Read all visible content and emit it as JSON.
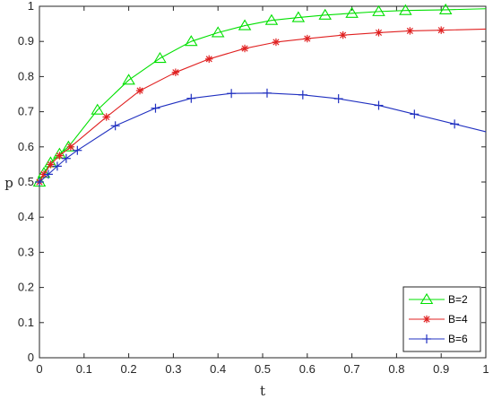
{
  "chart_data": {
    "type": "line",
    "xlabel": "t",
    "ylabel": "p",
    "xlim": [
      0,
      1
    ],
    "ylim": [
      0,
      1
    ],
    "x_ticks": [
      "0",
      "0.1",
      "0.2",
      "0.3",
      "0.4",
      "0.5",
      "0.6",
      "0.7",
      "0.8",
      "0.9",
      "1"
    ],
    "y_ticks": [
      "0",
      "0.1",
      "0.2",
      "0.3",
      "0.4",
      "0.5",
      "0.6",
      "0.7",
      "0.8",
      "0.9",
      "1"
    ],
    "grid": false,
    "legend_position": "bottom-right",
    "series": [
      {
        "name": "B=2",
        "color": "#00e000",
        "marker": "triangle",
        "x": [
          0,
          0.01,
          0.025,
          0.045,
          0.065,
          0.13,
          0.2,
          0.27,
          0.34,
          0.4,
          0.46,
          0.52,
          0.58,
          0.64,
          0.7,
          0.76,
          0.82,
          0.91,
          1.0
        ],
        "y": [
          0.5,
          0.525,
          0.555,
          0.58,
          0.6,
          0.705,
          0.79,
          0.852,
          0.9,
          0.925,
          0.945,
          0.96,
          0.968,
          0.975,
          0.98,
          0.985,
          0.988,
          0.99,
          0.993
        ],
        "marker_x": [
          0,
          0.01,
          0.025,
          0.045,
          0.065,
          0.13,
          0.2,
          0.27,
          0.34,
          0.4,
          0.46,
          0.52,
          0.58,
          0.64,
          0.7,
          0.76,
          0.82,
          0.91
        ]
      },
      {
        "name": "B=4",
        "color": "#e02020",
        "marker": "star",
        "x": [
          0,
          0.01,
          0.025,
          0.045,
          0.07,
          0.15,
          0.225,
          0.305,
          0.38,
          0.46,
          0.53,
          0.6,
          0.68,
          0.76,
          0.83,
          0.9,
          1.0
        ],
        "y": [
          0.5,
          0.522,
          0.55,
          0.575,
          0.6,
          0.685,
          0.76,
          0.812,
          0.85,
          0.88,
          0.898,
          0.908,
          0.918,
          0.925,
          0.93,
          0.932,
          0.935
        ],
        "marker_x": [
          0,
          0.01,
          0.025,
          0.045,
          0.07,
          0.15,
          0.225,
          0.305,
          0.38,
          0.46,
          0.53,
          0.6,
          0.68,
          0.76,
          0.83,
          0.9
        ]
      },
      {
        "name": "B=6",
        "color": "#2030c0",
        "marker": "plus",
        "x": [
          0,
          0.02,
          0.04,
          0.06,
          0.085,
          0.17,
          0.26,
          0.34,
          0.43,
          0.51,
          0.59,
          0.67,
          0.76,
          0.84,
          0.93,
          1.0
        ],
        "y": [
          0.5,
          0.522,
          0.545,
          0.567,
          0.59,
          0.66,
          0.71,
          0.738,
          0.752,
          0.753,
          0.748,
          0.737,
          0.718,
          0.693,
          0.665,
          0.643
        ],
        "marker_x": [
          0,
          0.02,
          0.04,
          0.06,
          0.085,
          0.17,
          0.26,
          0.34,
          0.43,
          0.51,
          0.59,
          0.67,
          0.76,
          0.84,
          0.93
        ]
      }
    ]
  }
}
